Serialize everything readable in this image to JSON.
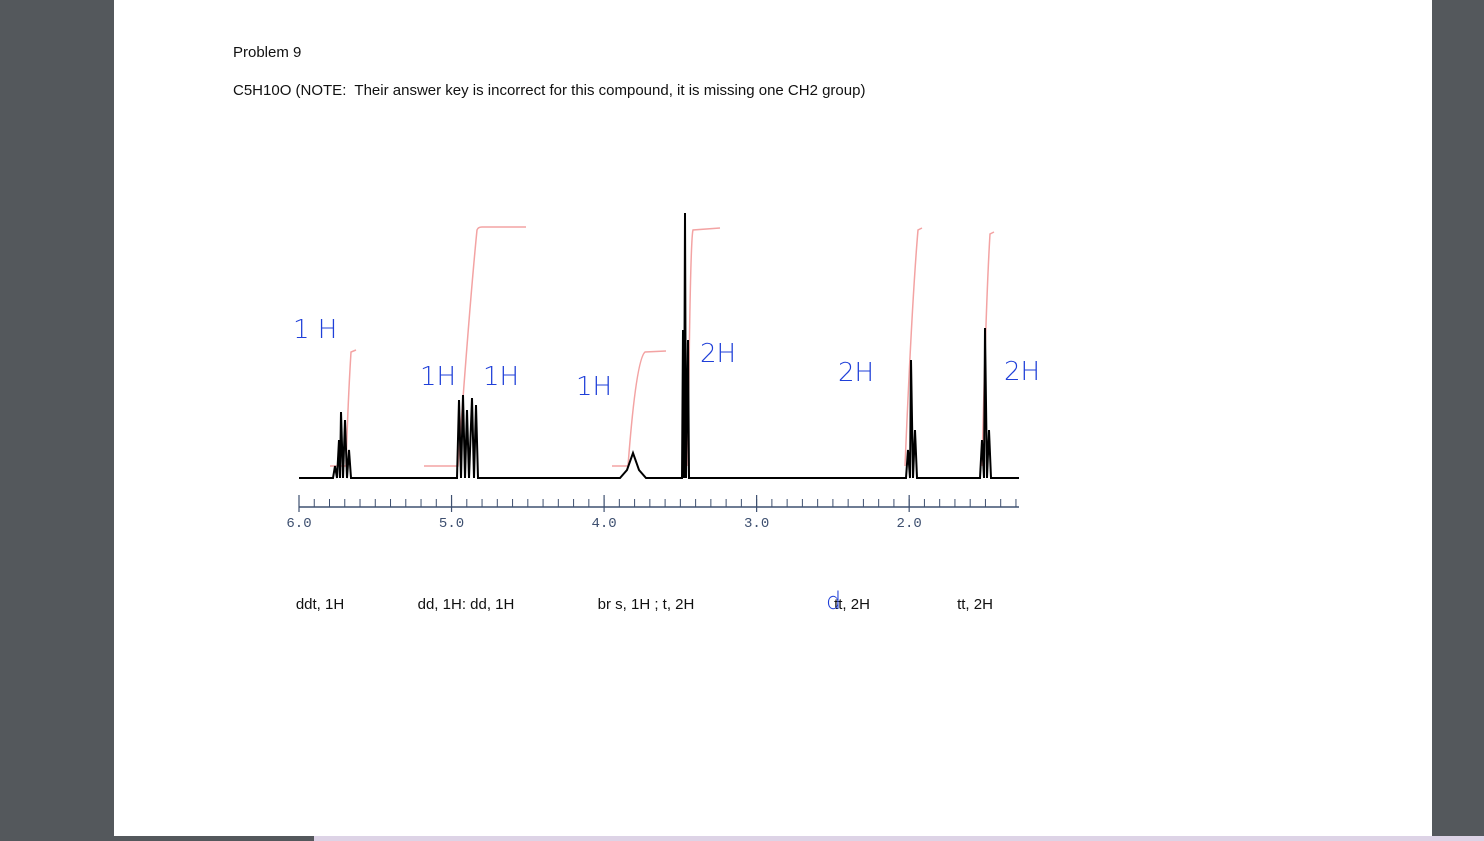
{
  "document": {
    "title": "Problem 9",
    "formula_note": "C5H10O (NOTE:  Their answer key is incorrect for this compound, it is missing one CH2 group)",
    "spectrum": {
      "xlim": [
        6.0,
        1.28
      ],
      "xticks": [
        {
          "value": 6,
          "label": "6.0"
        },
        {
          "value": 5,
          "label": "5.0"
        },
        {
          "value": 4,
          "label": "4.0"
        },
        {
          "value": 3,
          "label": "3.0"
        },
        {
          "value": 2,
          "label": "2.0"
        }
      ],
      "integrations": [
        "1 H",
        "1H",
        "1H",
        "1H",
        "2H",
        "2H",
        "2H"
      ]
    },
    "assignments": [
      "ddt, 1H",
      "dd, 1H: dd, 1H",
      "br s, 1H ; t, 2H",
      "tt, 2H",
      "tt, 2H"
    ],
    "handwritten_correction": "d"
  }
}
